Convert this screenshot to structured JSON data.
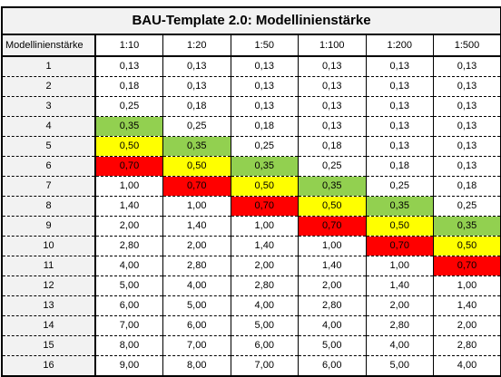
{
  "colors": {
    "green": "#92d050",
    "yellow": "#ffff00",
    "red": "#ff0000",
    "header_bg": "#f2f2f2"
  },
  "table": {
    "title": "BAU-Template 2.0: Modellinienstärke",
    "corner_label": "Modellinienstärke",
    "scales": [
      "1:10",
      "1:20",
      "1:50",
      "1:100",
      "1:200",
      "1:500"
    ],
    "rows": [
      {
        "label": "1",
        "values": [
          "0,13",
          "0,13",
          "0,13",
          "0,13",
          "0,13",
          "0,13"
        ],
        "highlights": [
          "",
          "",
          "",
          "",
          "",
          ""
        ]
      },
      {
        "label": "2",
        "values": [
          "0,18",
          "0,13",
          "0,13",
          "0,13",
          "0,13",
          "0,13"
        ],
        "highlights": [
          "",
          "",
          "",
          "",
          "",
          ""
        ]
      },
      {
        "label": "3",
        "values": [
          "0,25",
          "0,18",
          "0,13",
          "0,13",
          "0,13",
          "0,13"
        ],
        "highlights": [
          "",
          "",
          "",
          "",
          "",
          ""
        ]
      },
      {
        "label": "4",
        "values": [
          "0,35",
          "0,25",
          "0,18",
          "0,13",
          "0,13",
          "0,13"
        ],
        "highlights": [
          "green",
          "",
          "",
          "",
          "",
          ""
        ]
      },
      {
        "label": "5",
        "values": [
          "0,50",
          "0,35",
          "0,25",
          "0,18",
          "0,13",
          "0,13"
        ],
        "highlights": [
          "yellow",
          "green",
          "",
          "",
          "",
          ""
        ]
      },
      {
        "label": "6",
        "values": [
          "0,70",
          "0,50",
          "0,35",
          "0,25",
          "0,18",
          "0,13"
        ],
        "highlights": [
          "red",
          "yellow",
          "green",
          "",
          "",
          ""
        ]
      },
      {
        "label": "7",
        "values": [
          "1,00",
          "0,70",
          "0,50",
          "0,35",
          "0,25",
          "0,18"
        ],
        "highlights": [
          "",
          "red",
          "yellow",
          "green",
          "",
          ""
        ]
      },
      {
        "label": "8",
        "values": [
          "1,40",
          "1,00",
          "0,70",
          "0,50",
          "0,35",
          "0,25"
        ],
        "highlights": [
          "",
          "",
          "red",
          "yellow",
          "green",
          ""
        ]
      },
      {
        "label": "9",
        "values": [
          "2,00",
          "1,40",
          "1,00",
          "0,70",
          "0,50",
          "0,35"
        ],
        "highlights": [
          "",
          "",
          "",
          "red",
          "yellow",
          "green"
        ]
      },
      {
        "label": "10",
        "values": [
          "2,80",
          "2,00",
          "1,40",
          "1,00",
          "0,70",
          "0,50"
        ],
        "highlights": [
          "",
          "",
          "",
          "",
          "red",
          "yellow"
        ]
      },
      {
        "label": "11",
        "values": [
          "4,00",
          "2,80",
          "2,00",
          "1,40",
          "1,00",
          "0,70"
        ],
        "highlights": [
          "",
          "",
          "",
          "",
          "",
          "red"
        ]
      },
      {
        "label": "12",
        "values": [
          "5,00",
          "4,00",
          "2,80",
          "2,00",
          "1,40",
          "1,00"
        ],
        "highlights": [
          "",
          "",
          "",
          "",
          "",
          ""
        ]
      },
      {
        "label": "13",
        "values": [
          "6,00",
          "5,00",
          "4,00",
          "2,80",
          "2,00",
          "1,40"
        ],
        "highlights": [
          "",
          "",
          "",
          "",
          "",
          ""
        ]
      },
      {
        "label": "14",
        "values": [
          "7,00",
          "6,00",
          "5,00",
          "4,00",
          "2,80",
          "2,00"
        ],
        "highlights": [
          "",
          "",
          "",
          "",
          "",
          ""
        ]
      },
      {
        "label": "15",
        "values": [
          "8,00",
          "7,00",
          "6,00",
          "5,00",
          "4,00",
          "2,80"
        ],
        "highlights": [
          "",
          "",
          "",
          "",
          "",
          ""
        ]
      },
      {
        "label": "16",
        "values": [
          "9,00",
          "8,00",
          "7,00",
          "6,00",
          "5,00",
          "4,00"
        ],
        "highlights": [
          "",
          "",
          "",
          "",
          "",
          ""
        ]
      }
    ]
  }
}
